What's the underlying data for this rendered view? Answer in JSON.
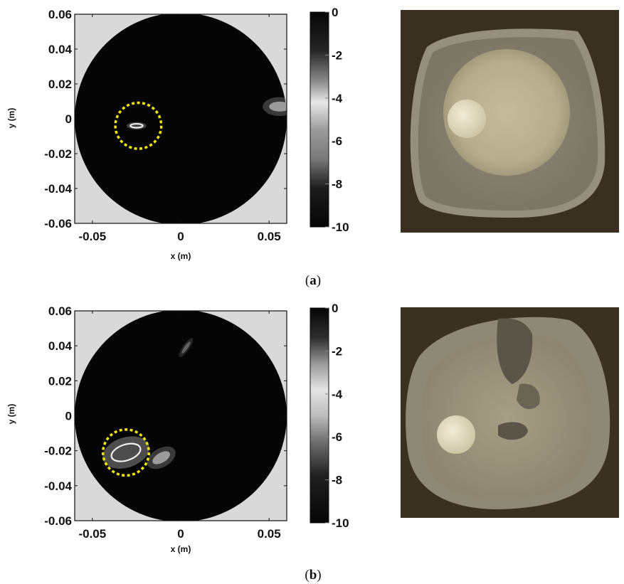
{
  "chart_data": [
    {
      "type": "heatmap",
      "panel": "a",
      "caption_letter": "a",
      "xlabel": "x (m)",
      "ylabel": "y (m)",
      "xlim": [
        -0.06,
        0.06
      ],
      "ylim": [
        -0.06,
        0.06
      ],
      "x_ticks": [
        -0.05,
        0,
        0.05
      ],
      "x_tick_labels": [
        "-0.05",
        "0",
        "0.05"
      ],
      "y_ticks": [
        0.06,
        0.04,
        0.02,
        0,
        -0.02,
        -0.04,
        -0.06
      ],
      "y_tick_labels": [
        "0.06",
        "0.04",
        "0.02",
        "0",
        "-0.02",
        "-0.04",
        "-0.06"
      ],
      "colorbar": {
        "range": [
          -10,
          0
        ],
        "ticks": [
          0,
          -2,
          -4,
          -6,
          -8,
          -10
        ],
        "tick_labels": [
          "0",
          "-2",
          "-4",
          "-6",
          "-8",
          "-10"
        ]
      },
      "imaging_domain_radius": 0.06,
      "detections": [
        {
          "x": -0.025,
          "y": -0.004,
          "rx": 0.0035,
          "ry": 0.0011,
          "angle": 0,
          "level": -4,
          "kind": "target"
        },
        {
          "x": 0.056,
          "y": 0.007,
          "rx": 0.006,
          "ry": 0.0028,
          "angle": 0,
          "level": -5,
          "kind": "artifact"
        }
      ],
      "marker_circle": {
        "x": -0.024,
        "y": -0.004,
        "r": 0.013,
        "color": "#f2e600"
      }
    },
    {
      "type": "heatmap",
      "panel": "b",
      "caption_letter": "b",
      "xlabel": "x (m)",
      "ylabel": "y (m)",
      "xlim": [
        -0.06,
        0.06
      ],
      "ylim": [
        -0.06,
        0.06
      ],
      "x_ticks": [
        -0.05,
        0,
        0.05
      ],
      "x_tick_labels": [
        "-0.05",
        "0",
        "0.05"
      ],
      "y_ticks": [
        0.06,
        0.04,
        0.02,
        0,
        -0.02,
        -0.04,
        -0.06
      ],
      "y_tick_labels": [
        "0.06",
        "0.04",
        "0.02",
        "0",
        "-0.02",
        "-0.04",
        "-0.06"
      ],
      "colorbar": {
        "range": [
          -10,
          0
        ],
        "ticks": [
          0,
          -2,
          -4,
          -6,
          -8,
          -10
        ],
        "tick_labels": [
          "0",
          "-2",
          "-4",
          "-6",
          "-8",
          "-10"
        ]
      },
      "imaging_domain_radius": 0.06,
      "detections": [
        {
          "x": -0.031,
          "y": -0.021,
          "rx": 0.0085,
          "ry": 0.0045,
          "angle": -18,
          "level": -2,
          "kind": "target"
        },
        {
          "x": -0.011,
          "y": -0.024,
          "rx": 0.0055,
          "ry": 0.0028,
          "angle": -30,
          "level": -5,
          "kind": "artifact"
        },
        {
          "x": 0.003,
          "y": 0.039,
          "rx": 0.004,
          "ry": 0.001,
          "angle": -55,
          "level": -8,
          "kind": "artifact"
        }
      ],
      "marker_circle": {
        "x": -0.031,
        "y": -0.021,
        "r": 0.013,
        "color": "#f2e600"
      }
    }
  ],
  "captions": [
    {
      "open": "(",
      "letter": "a",
      "close": ")"
    },
    {
      "open": "(",
      "letter": "b",
      "close": ")"
    }
  ],
  "colors": {
    "background_outside_domain": "#d9d9d9",
    "domain_fill": "#050505",
    "marker": "#f2e600",
    "photo_bg_a": "#3a3020",
    "photo_bg_b": "#3b3122"
  }
}
